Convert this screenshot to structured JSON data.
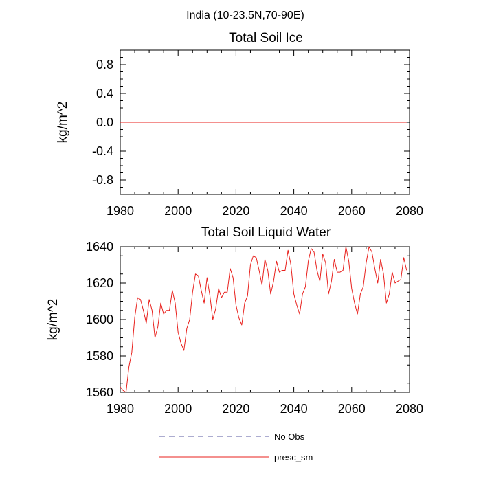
{
  "figure_title": "India (10-23.5N,70-90E)",
  "legend": [
    {
      "label": "No Obs",
      "color": "#5a5aa0",
      "style": "dashed"
    },
    {
      "label": "presc_sm",
      "color": "#e8201c",
      "style": "solid"
    }
  ],
  "chart_data": [
    {
      "type": "line",
      "title": "Total Soil Ice",
      "xlabel": "",
      "ylabel": "kg/m^2",
      "xlim": [
        1980,
        2080
      ],
      "ylim": [
        -1,
        1
      ],
      "xticks": [
        1980,
        2000,
        2020,
        2040,
        2060,
        2080
      ],
      "yticks": [
        -0.8,
        -0.4,
        0.0,
        0.4,
        0.8
      ],
      "ytick_labels": [
        "-0.8",
        "-0.4",
        "0.0",
        "0.4",
        "0.8"
      ],
      "series": [
        {
          "name": "presc_sm",
          "color": "#e8201c",
          "x": [
            1980,
            2079
          ],
          "values": [
            0,
            0
          ]
        }
      ]
    },
    {
      "type": "line",
      "title": "Total Soil Liquid Water",
      "xlabel": "",
      "ylabel": "kg/m^2",
      "xlim": [
        1980,
        2080
      ],
      "ylim": [
        1560,
        1640
      ],
      "xticks": [
        1980,
        2000,
        2020,
        2040,
        2060,
        2080
      ],
      "yticks": [
        1560,
        1580,
        1600,
        1620,
        1640
      ],
      "ytick_labels": [
        "1560",
        "1580",
        "1600",
        "1620",
        "1640"
      ],
      "series": [
        {
          "name": "presc_sm",
          "color": "#e8201c",
          "x": [
            1980,
            1981,
            1982,
            1983,
            1984,
            1985,
            1986,
            1987,
            1988,
            1989,
            1990,
            1991,
            1992,
            1993,
            1994,
            1995,
            1996,
            1997,
            1998,
            1999,
            2000,
            2001,
            2002,
            2003,
            2004,
            2005,
            2006,
            2007,
            2008,
            2009,
            2010,
            2011,
            2012,
            2013,
            2014,
            2015,
            2016,
            2017,
            2018,
            2019,
            2020,
            2021,
            2022,
            2023,
            2024,
            2025,
            2026,
            2027,
            2028,
            2029,
            2030,
            2031,
            2032,
            2033,
            2034,
            2035,
            2036,
            2037,
            2038,
            2039,
            2040,
            2041,
            2042,
            2043,
            2044,
            2045,
            2046,
            2047,
            2048,
            2049,
            2050,
            2051,
            2052,
            2053,
            2054,
            2055,
            2056,
            2057,
            2058,
            2059,
            2060,
            2061,
            2062,
            2063,
            2064,
            2065,
            2066,
            2067,
            2068,
            2069,
            2070,
            2071,
            2072,
            2073,
            2074,
            2075,
            2076,
            2077,
            2078,
            2079
          ],
          "values": [
            1563,
            1561,
            1560,
            1574,
            1582,
            1601,
            1612,
            1611,
            1605,
            1598,
            1611,
            1605,
            1590,
            1596,
            1609,
            1603,
            1605,
            1605,
            1616,
            1609,
            1593,
            1587,
            1583,
            1595,
            1600,
            1615,
            1625,
            1624,
            1616,
            1609,
            1623,
            1613,
            1600,
            1606,
            1617,
            1612,
            1615,
            1615,
            1628,
            1623,
            1608,
            1601,
            1597,
            1609,
            1613,
            1630,
            1635,
            1634,
            1627,
            1619,
            1633,
            1627,
            1614,
            1621,
            1632,
            1626,
            1627,
            1627,
            1638,
            1630,
            1614,
            1608,
            1603,
            1614,
            1618,
            1632,
            1639,
            1637,
            1627,
            1621,
            1636,
            1631,
            1614,
            1621,
            1633,
            1626,
            1626,
            1627,
            1640,
            1632,
            1617,
            1609,
            1603,
            1614,
            1618,
            1631,
            1640,
            1637,
            1628,
            1620,
            1633,
            1625,
            1609,
            1614,
            1626,
            1620,
            1621,
            1622,
            1634,
            1627
          ]
        }
      ]
    }
  ]
}
